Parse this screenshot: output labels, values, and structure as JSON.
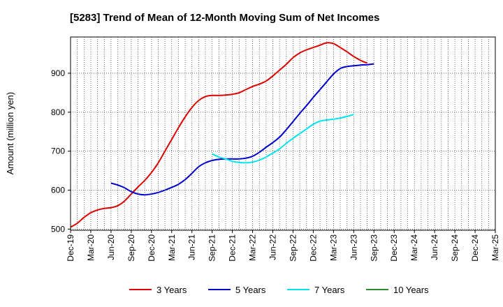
{
  "chart_data": {
    "type": "line",
    "title": "[5283]  Trend of Mean of 12-Month Moving Sum of Net Incomes",
    "ylabel": "Amount (million yen)",
    "xlabel": "",
    "ylim": [
      497,
      993
    ],
    "yticks": [
      500,
      600,
      700,
      800,
      900
    ],
    "grid": true,
    "legend_position": "bottom",
    "categories": [
      "Dec-19",
      "Mar-20",
      "Jun-20",
      "Sep-20",
      "Dec-20",
      "Mar-21",
      "Jun-21",
      "Sep-21",
      "Dec-21",
      "Mar-22",
      "Jun-22",
      "Sep-22",
      "Dec-22",
      "Mar-23",
      "Jun-23",
      "Sep-23",
      "Dec-23",
      "Mar-24",
      "Jun-24",
      "Sep-24",
      "Dec-24",
      "Mar-25"
    ],
    "series": [
      {
        "name": "3 Years",
        "color": "#dd0000",
        "points": [
          [
            0,
            505
          ],
          [
            1,
            515
          ],
          [
            2,
            530
          ],
          [
            3,
            542
          ],
          [
            4,
            549
          ],
          [
            5,
            553
          ],
          [
            6,
            555
          ],
          [
            7,
            560
          ],
          [
            8,
            572
          ],
          [
            9,
            590
          ],
          [
            10,
            608
          ],
          [
            11,
            625
          ],
          [
            12,
            645
          ],
          [
            13,
            670
          ],
          [
            14,
            700
          ],
          [
            15,
            730
          ],
          [
            16,
            760
          ],
          [
            17,
            788
          ],
          [
            18,
            812
          ],
          [
            19,
            830
          ],
          [
            20,
            840
          ],
          [
            21,
            843
          ],
          [
            22,
            843
          ],
          [
            23,
            844
          ],
          [
            24,
            846
          ],
          [
            25,
            850
          ],
          [
            26,
            858
          ],
          [
            27,
            866
          ],
          [
            28,
            872
          ],
          [
            29,
            880
          ],
          [
            30,
            893
          ],
          [
            31,
            908
          ],
          [
            32,
            923
          ],
          [
            33,
            940
          ],
          [
            34,
            952
          ],
          [
            35,
            960
          ],
          [
            36,
            966
          ],
          [
            37,
            972
          ],
          [
            38,
            978
          ],
          [
            39,
            976
          ],
          [
            40,
            966
          ],
          [
            41,
            955
          ],
          [
            42,
            943
          ],
          [
            43,
            933
          ],
          [
            44,
            926
          ]
        ]
      },
      {
        "name": "5 Years",
        "color": "#0000cc",
        "points": [
          [
            6,
            618
          ],
          [
            7,
            613
          ],
          [
            8,
            606
          ],
          [
            9,
            596
          ],
          [
            10,
            590
          ],
          [
            11,
            588
          ],
          [
            12,
            590
          ],
          [
            13,
            594
          ],
          [
            14,
            600
          ],
          [
            15,
            607
          ],
          [
            16,
            615
          ],
          [
            17,
            627
          ],
          [
            18,
            643
          ],
          [
            19,
            660
          ],
          [
            20,
            670
          ],
          [
            21,
            676
          ],
          [
            22,
            679
          ],
          [
            23,
            680
          ],
          [
            24,
            680
          ],
          [
            25,
            680
          ],
          [
            26,
            682
          ],
          [
            27,
            687
          ],
          [
            28,
            697
          ],
          [
            29,
            710
          ],
          [
            30,
            722
          ],
          [
            31,
            736
          ],
          [
            32,
            755
          ],
          [
            33,
            776
          ],
          [
            34,
            797
          ],
          [
            35,
            817
          ],
          [
            36,
            838
          ],
          [
            37,
            858
          ],
          [
            38,
            878
          ],
          [
            39,
            898
          ],
          [
            40,
            912
          ],
          [
            41,
            917
          ],
          [
            42,
            919
          ],
          [
            43,
            921
          ],
          [
            44,
            922
          ],
          [
            45,
            924
          ]
        ]
      },
      {
        "name": "7 Years",
        "color": "#00e5ee",
        "points": [
          [
            21,
            693
          ],
          [
            22,
            685
          ],
          [
            23,
            680
          ],
          [
            24,
            674
          ],
          [
            25,
            671
          ],
          [
            26,
            670
          ],
          [
            27,
            672
          ],
          [
            28,
            677
          ],
          [
            29,
            685
          ],
          [
            30,
            695
          ],
          [
            31,
            706
          ],
          [
            32,
            720
          ],
          [
            33,
            733
          ],
          [
            34,
            745
          ],
          [
            35,
            757
          ],
          [
            36,
            769
          ],
          [
            37,
            777
          ],
          [
            38,
            780
          ],
          [
            39,
            782
          ],
          [
            40,
            785
          ],
          [
            41,
            789
          ],
          [
            42,
            794
          ]
        ]
      },
      {
        "name": "10 Years",
        "color": "#2d8a2d",
        "points": []
      }
    ]
  }
}
